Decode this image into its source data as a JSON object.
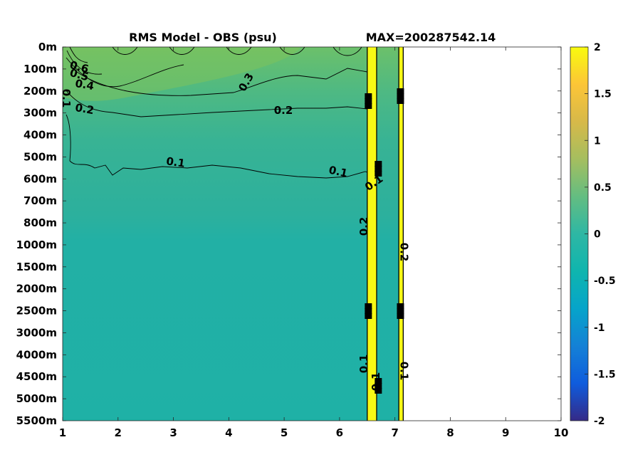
{
  "chart_data": {
    "type": "heatmap",
    "title": "RMS Model - OBS (psu)",
    "subtitle": "MAX=200287542.14",
    "xlabel": "",
    "ylabel": "",
    "xlim": [
      1,
      10
    ],
    "x_ticks": [
      "1",
      "2",
      "3",
      "4",
      "5",
      "6",
      "7",
      "8",
      "9",
      "10"
    ],
    "y_ticks": [
      "0m",
      "100m",
      "200m",
      "300m",
      "400m",
      "500m",
      "600m",
      "700m",
      "800m",
      "1000m",
      "1500m",
      "2000m",
      "2500m",
      "3000m",
      "4000m",
      "4500m",
      "5000m",
      "5500m"
    ],
    "colorbar": {
      "range": [
        -2,
        2
      ],
      "ticks": [
        "2",
        "1.5",
        "1",
        "0.5",
        "0",
        "-0.5",
        "-1",
        "-1.5",
        "-2"
      ],
      "colormap": "parula"
    },
    "field": {
      "x_extent": [
        1,
        7.1
      ],
      "surface_value": 0.5,
      "deep_value": 0.1,
      "saturated_columns": [
        {
          "x_from": 6.5,
          "x_to": 6.67,
          "value": 2
        },
        {
          "x_from": 7.07,
          "x_to": 7.15,
          "value": 2
        }
      ]
    },
    "contour_levels": [
      0.6,
      0.5,
      0.4,
      0.3,
      0.2,
      0.1
    ],
    "contour_labels": [
      "0.6",
      "0.5",
      "0.4",
      "0.3",
      "0.2",
      "0.1",
      "0.2",
      "0.1",
      "0.1",
      "0.1",
      "0.2",
      "0.2",
      "0.1",
      "0.1",
      "0.1"
    ],
    "grid": false,
    "colors": {
      "surface": "#5cbd77",
      "upper": "#3eb58e",
      "mid": "#2cb09c",
      "deep": "#1fb1a6",
      "saturated": "#f7f915"
    }
  }
}
